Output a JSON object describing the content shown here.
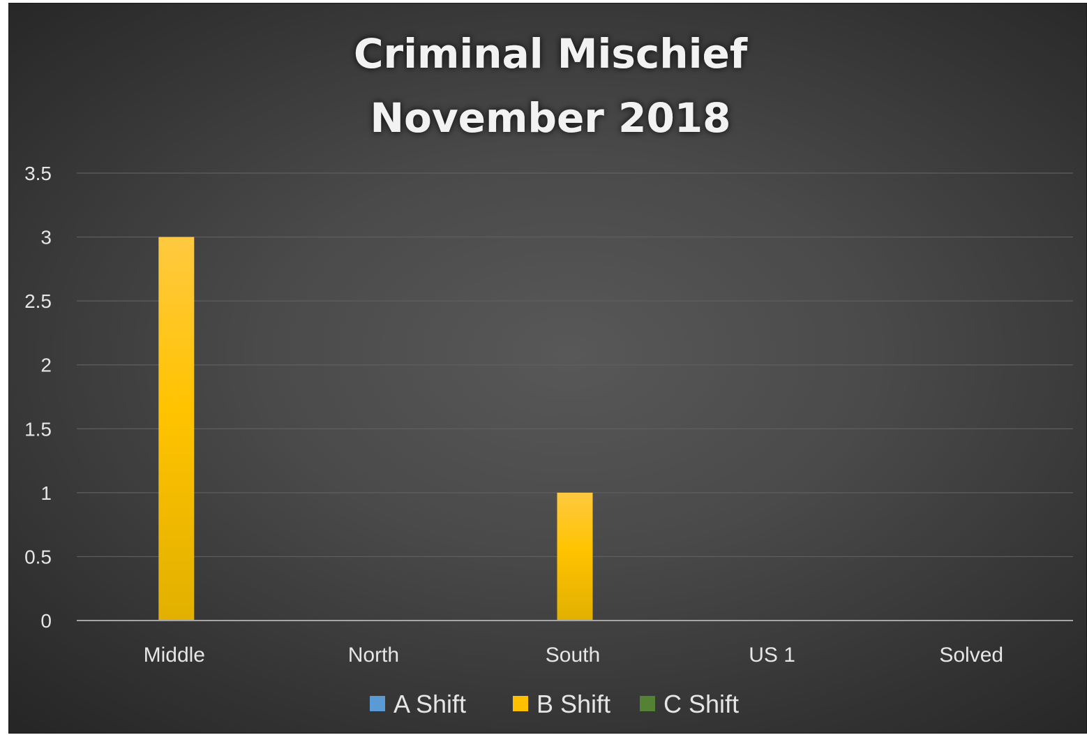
{
  "chart_data": {
    "type": "bar",
    "title": [
      "Criminal Mischief",
      "November 2018"
    ],
    "categories": [
      "Middle",
      "North",
      "South",
      "US 1",
      "Solved"
    ],
    "series": [
      {
        "name": "A Shift",
        "color": "#5b9bd5",
        "values": [
          0,
          0,
          0,
          0,
          0
        ]
      },
      {
        "name": "B Shift",
        "color": "#ffc000",
        "values": [
          3,
          0,
          1,
          0,
          0
        ]
      },
      {
        "name": "C Shift",
        "color": "#548235",
        "values": [
          0,
          0,
          0,
          0,
          0
        ]
      }
    ],
    "ylim": [
      0,
      3.5
    ],
    "yticks": [
      "0",
      "0.5",
      "1",
      "1.5",
      "2",
      "2.5",
      "3",
      "3.5"
    ],
    "grid": true,
    "legend": "bottom"
  }
}
